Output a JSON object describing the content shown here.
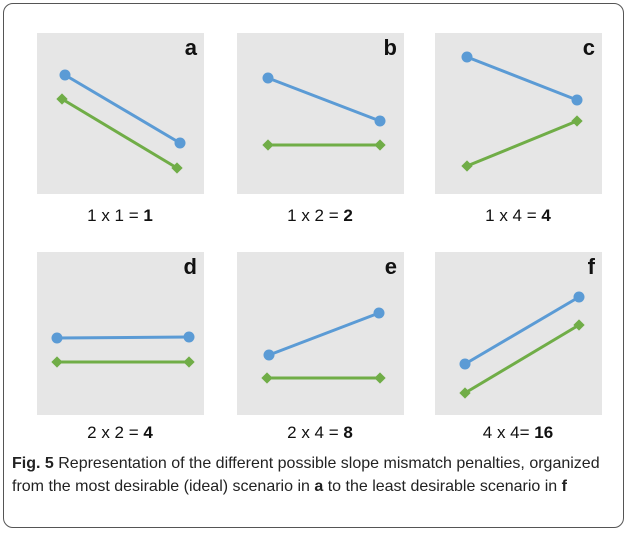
{
  "panels": [
    {
      "letter": "a",
      "formula": "1 x 1 =",
      "result": "1"
    },
    {
      "letter": "b",
      "formula": "1 x 2 =",
      "result": "2"
    },
    {
      "letter": "c",
      "formula": "1 x 4 =",
      "result": "4"
    },
    {
      "letter": "d",
      "formula": "2 x 2 =",
      "result": "4"
    },
    {
      "letter": "e",
      "formula": "2 x 4 =",
      "result": "8"
    },
    {
      "letter": "f",
      "formula": "4 x 4=",
      "result": "16"
    }
  ],
  "caption": {
    "label": "Fig. 5",
    "text_1": "Representation of the different possible slope mismatch penalties, organized from the most desirable (ideal) scenario in",
    "ref_1": "a",
    "text_2": "to the least desirable scenario in",
    "ref_2": "f"
  }
}
